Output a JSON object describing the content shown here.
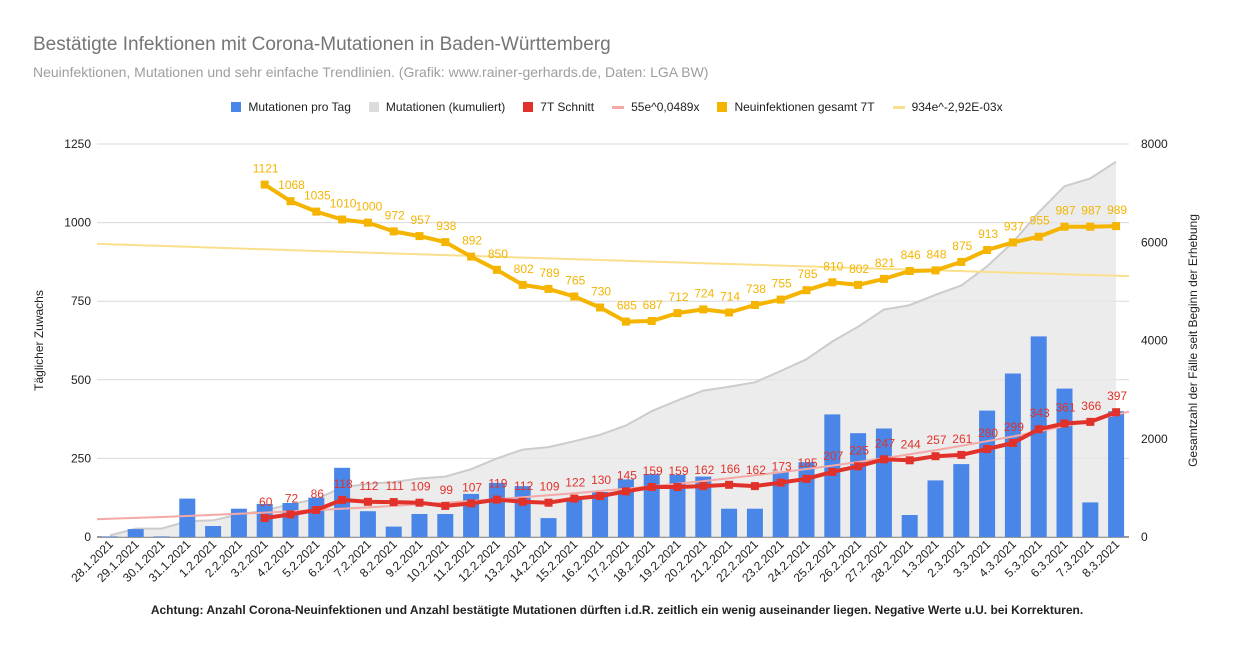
{
  "title": "Bestätigte Infektionen mit Corona-Mutationen in Baden-Württemberg",
  "subtitle": "Neuinfektionen, Mutationen und sehr einfache Trendlinien.  (Grafik: www.rainer-gerhards.de, Daten: LGA BW)",
  "footnote": "Achtung: Anzahl Corona-Neuinfektionen und Anzahl bestätigte Mutationen dürften i.d.R. zeitlich ein wenig auseinander liegen. Negative Werte u.U. bei Korrekturen.",
  "colors": {
    "bars": "#4a86e8",
    "cumulative": "#e6e6e6",
    "avg7": "#e0322a",
    "trend_mut": "#f4a9a6",
    "new7": "#f4b400",
    "trend_new": "#fae08c"
  },
  "legend": [
    {
      "key": "bars",
      "label": "Mutationen pro Tag",
      "kind": "box"
    },
    {
      "key": "cumulative",
      "label": "Mutationen (kumuliert)",
      "kind": "box"
    },
    {
      "key": "avg7",
      "label": "7T Schnitt",
      "kind": "box"
    },
    {
      "key": "trend_mut",
      "label": "55e^0,0489x",
      "kind": "line"
    },
    {
      "key": "new7",
      "label": "Neuinfektionen gesamt 7T",
      "kind": "box"
    },
    {
      "key": "trend_new",
      "label": "934e^-2,92E-03x",
      "kind": "line"
    }
  ],
  "chart_data": {
    "type": "bar",
    "categories": [
      "28.1.2021",
      "29.1.2021",
      "30.1.2021",
      "31.1.2021",
      "1.2.2021",
      "2.2.2021",
      "3.2.2021",
      "4.2.2021",
      "5.2.2021",
      "6.2.2021",
      "7.2.2021",
      "8.2.2021",
      "9.2.2021",
      "10.2.2021",
      "11.2.2021",
      "12.2.2021",
      "13.2.2021",
      "14.2.2021",
      "15.2.2021",
      "16.2.2021",
      "17.2.2021",
      "18.2.2021",
      "19.2.2021",
      "20.2.2021",
      "21.2.2021",
      "22.2.2021",
      "23.2.2021",
      "24.2.2021",
      "25.2.2021",
      "26.2.2021",
      "27.2.2021",
      "28.2.2021",
      "1.3.2021",
      "2.3.2021",
      "3.3.2021",
      "4.3.2021",
      "5.3.2021",
      "6.3.2021",
      "7.3.2021",
      "8.3.2021"
    ],
    "ylabel": "Täglicher Zuwachs",
    "y2label": "Gesamtzahl der Fälle seit Beginn der Erhebung",
    "ylim": [
      0,
      1250
    ],
    "y2lim": [
      0,
      8000
    ],
    "yticks": [
      0,
      250,
      500,
      750,
      1000,
      1250
    ],
    "y2ticks": [
      0,
      2000,
      4000,
      6000,
      8000
    ],
    "grid": true,
    "legend_position": "top",
    "series": [
      {
        "name": "Mutationen pro Tag",
        "type": "bar",
        "axis": "left",
        "values": [
          2,
          25,
          2,
          122,
          35,
          90,
          105,
          108,
          125,
          220,
          82,
          33,
          73,
          73,
          137,
          172,
          162,
          60,
          120,
          143,
          183,
          200,
          198,
          192,
          90,
          90,
          208,
          238,
          390,
          330,
          345,
          70,
          180,
          232,
          402,
          520,
          638,
          472,
          110,
          400
        ]
      },
      {
        "name": "Mutationen (kumuliert)",
        "type": "area",
        "axis": "right",
        "values": [
          30,
          170,
          170,
          320,
          340,
          460,
          540,
          670,
          770,
          1010,
          1080,
          1120,
          1190,
          1230,
          1380,
          1600,
          1780,
          1830,
          1950,
          2080,
          2270,
          2560,
          2780,
          2980,
          3060,
          3150,
          3380,
          3620,
          3980,
          4280,
          4630,
          4720,
          4930,
          5120,
          5510,
          6000,
          6610,
          7140,
          7300,
          7640
        ]
      },
      {
        "name": "7T Schnitt",
        "type": "line",
        "axis": "left",
        "label_from_index": 6,
        "values": [
          null,
          null,
          null,
          null,
          null,
          null,
          60,
          72,
          86,
          118,
          112,
          111,
          109,
          99,
          107,
          119,
          112,
          109,
          122,
          130,
          145,
          159,
          159,
          162,
          166,
          162,
          173,
          185,
          207,
          225,
          247,
          244,
          257,
          261,
          280,
          299,
          343,
          361,
          366,
          397
        ]
      },
      {
        "name": "Neuinfektionen gesamt 7T",
        "type": "line",
        "axis": "left",
        "values": [
          null,
          null,
          null,
          null,
          null,
          null,
          1121,
          1068,
          1035,
          1010,
          1000,
          972,
          957,
          938,
          892,
          850,
          802,
          789,
          765,
          730,
          685,
          687,
          712,
          724,
          714,
          738,
          755,
          785,
          810,
          802,
          821,
          846,
          848,
          875,
          913,
          937,
          955,
          987,
          987,
          989
        ]
      },
      {
        "name": "55e^0,0489x",
        "type": "trendline",
        "axis": "left",
        "a": 55,
        "b": 0.0489
      },
      {
        "name": "934e^-2,92E-03x",
        "type": "trendline",
        "axis": "left",
        "a": 934,
        "b": -0.00292
      }
    ]
  }
}
